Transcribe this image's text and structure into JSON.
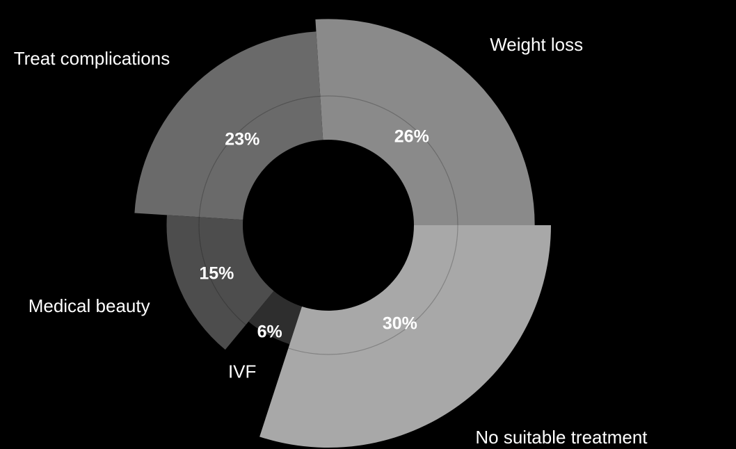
{
  "chart_data": {
    "type": "pie",
    "variant": "rose-donut",
    "start_angle": "3 o'clock, counterclockwise",
    "background": "#000000",
    "text_color": "#ffffff",
    "inner_ring": true,
    "slices": [
      {
        "label": "Weight loss",
        "value": 26,
        "value_label": "26%",
        "color": "#8a8a8a"
      },
      {
        "label": "Treat complications",
        "value": 23,
        "value_label": "23%",
        "color": "#6a6a6a"
      },
      {
        "label": "Medical beauty",
        "value": 15,
        "value_label": "15%",
        "color": "#4d4d4d"
      },
      {
        "label": "IVF",
        "value": 6,
        "value_label": "6%",
        "color": "#2e2e2e"
      },
      {
        "label": "No suitable treatment",
        "value": 30,
        "value_label": "30%",
        "color": "#a8a8a8"
      }
    ]
  }
}
